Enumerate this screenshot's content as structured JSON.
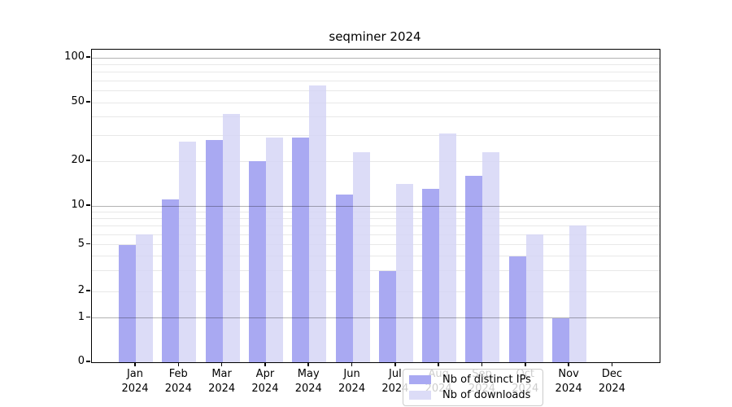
{
  "chart_data": {
    "type": "bar",
    "title": "seqminer 2024",
    "categories": [
      "Jan 2024",
      "Feb 2024",
      "Mar 2024",
      "Apr 2024",
      "May 2024",
      "Jun 2024",
      "Jul 2024",
      "Aug 2024",
      "Sep 2024",
      "Oct 2024",
      "Nov 2024",
      "Dec 2024"
    ],
    "series": [
      {
        "name": "Nb of distinct IPs",
        "color": "#a9a9f2",
        "values": [
          5,
          11,
          28,
          20,
          29,
          12,
          3,
          13,
          16,
          4,
          1,
          0
        ]
      },
      {
        "name": "Nb of downloads",
        "color": "#dcdcf7",
        "values": [
          6,
          27,
          42,
          29,
          65,
          23,
          14,
          31,
          23,
          6,
          7,
          0
        ]
      }
    ],
    "y_axis": {
      "scale": "log-like with zero baseline",
      "ticks": [
        0,
        1,
        2,
        5,
        10,
        20,
        50,
        100
      ],
      "major_gridlines": [
        1,
        10,
        100
      ],
      "minor_gridlines": [
        2,
        5,
        20,
        50,
        3,
        4,
        6,
        7,
        8,
        9,
        30,
        40,
        60,
        70,
        80,
        90
      ],
      "range": [
        0,
        110
      ]
    },
    "x_axis": {
      "year_line": "2024"
    },
    "legend": {
      "position": "lower center",
      "entries": [
        "Nb of distinct IPs",
        "Nb of downloads"
      ]
    },
    "grid": true
  },
  "colors": {
    "bar_distinct_ips": "#a9a9f2",
    "bar_downloads": "#dcdcf7",
    "grid_minor": "#e8e8e8",
    "grid_major": "#b0b0b0",
    "axis": "#000000",
    "background": "#ffffff"
  }
}
